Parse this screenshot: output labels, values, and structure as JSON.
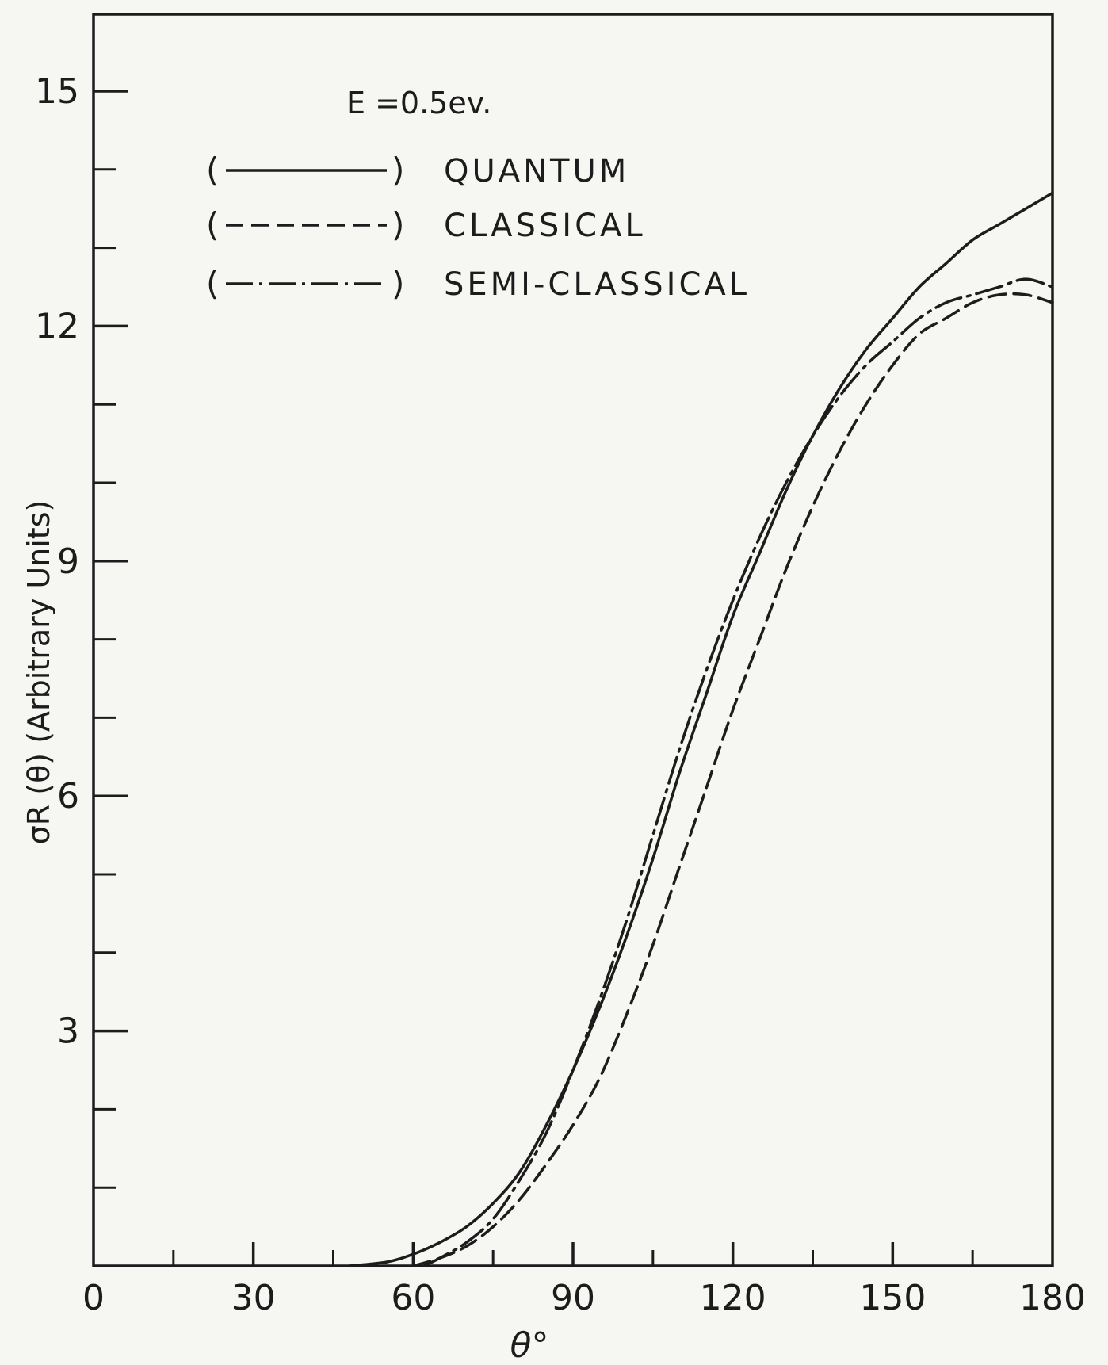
{
  "chart_data": {
    "type": "line",
    "title": "",
    "annotation": "E =0.5ev.",
    "xlabel": "θ°",
    "ylabel": "σR (θ) (Arbitrary Units)",
    "xlim": [
      0,
      180
    ],
    "ylim": [
      0,
      16
    ],
    "x_ticks": [
      0,
      30,
      60,
      90,
      120,
      150,
      180
    ],
    "x_ticks_minor": [
      15,
      45,
      75,
      105,
      135,
      165
    ],
    "y_ticks": [
      3,
      6,
      9,
      12,
      15
    ],
    "y_ticks_minor": [
      1,
      2,
      4,
      5,
      7,
      8,
      10,
      11,
      13,
      14
    ],
    "legend_position": "top-left",
    "legend": [
      {
        "key": "quantum",
        "open": "(",
        "close": ")",
        "label": "QUANTUM",
        "style": "solid"
      },
      {
        "key": "classical",
        "open": "(",
        "close": ")",
        "label": "CLASSICAL",
        "style": "dashed"
      },
      {
        "key": "semiclassical",
        "open": "(",
        "close": ")",
        "label": "SEMI-CLASSICAL",
        "style": "dash-dot"
      }
    ],
    "series": [
      {
        "key": "quantum",
        "style": "solid",
        "color": "#1c1c1c",
        "x": [
          48,
          55,
          60,
          65,
          70,
          75,
          80,
          85,
          90,
          95,
          100,
          105,
          110,
          115,
          120,
          125,
          130,
          135,
          140,
          145,
          150,
          155,
          160,
          165,
          170,
          175,
          180
        ],
        "y": [
          0.0,
          0.05,
          0.15,
          0.3,
          0.5,
          0.8,
          1.2,
          1.8,
          2.5,
          3.3,
          4.2,
          5.2,
          6.3,
          7.3,
          8.3,
          9.1,
          9.9,
          10.6,
          11.2,
          11.7,
          12.1,
          12.5,
          12.8,
          13.1,
          13.3,
          13.5,
          13.7
        ]
      },
      {
        "key": "classical",
        "style": "dashed",
        "color": "#1c1c1c",
        "x": [
          60,
          65,
          70,
          75,
          80,
          85,
          90,
          95,
          100,
          105,
          110,
          115,
          120,
          125,
          130,
          135,
          140,
          145,
          150,
          155,
          160,
          165,
          170,
          175,
          180
        ],
        "y": [
          0.0,
          0.1,
          0.25,
          0.5,
          0.85,
          1.3,
          1.8,
          2.4,
          3.2,
          4.1,
          5.1,
          6.1,
          7.1,
          8.0,
          8.9,
          9.7,
          10.4,
          11.0,
          11.5,
          11.9,
          12.1,
          12.3,
          12.4,
          12.4,
          12.3
        ]
      },
      {
        "key": "semiclassical",
        "style": "dash-dot",
        "color": "#1c1c1c",
        "x": [
          62,
          65,
          70,
          75,
          80,
          85,
          90,
          95,
          100,
          105,
          110,
          115,
          120,
          125,
          130,
          135,
          140,
          145,
          150,
          155,
          160,
          165,
          170,
          175,
          180
        ],
        "y": [
          0.0,
          0.1,
          0.3,
          0.6,
          1.1,
          1.7,
          2.5,
          3.4,
          4.4,
          5.5,
          6.6,
          7.6,
          8.5,
          9.3,
          10.0,
          10.6,
          11.1,
          11.5,
          11.8,
          12.1,
          12.3,
          12.4,
          12.5,
          12.6,
          12.5
        ]
      }
    ]
  }
}
